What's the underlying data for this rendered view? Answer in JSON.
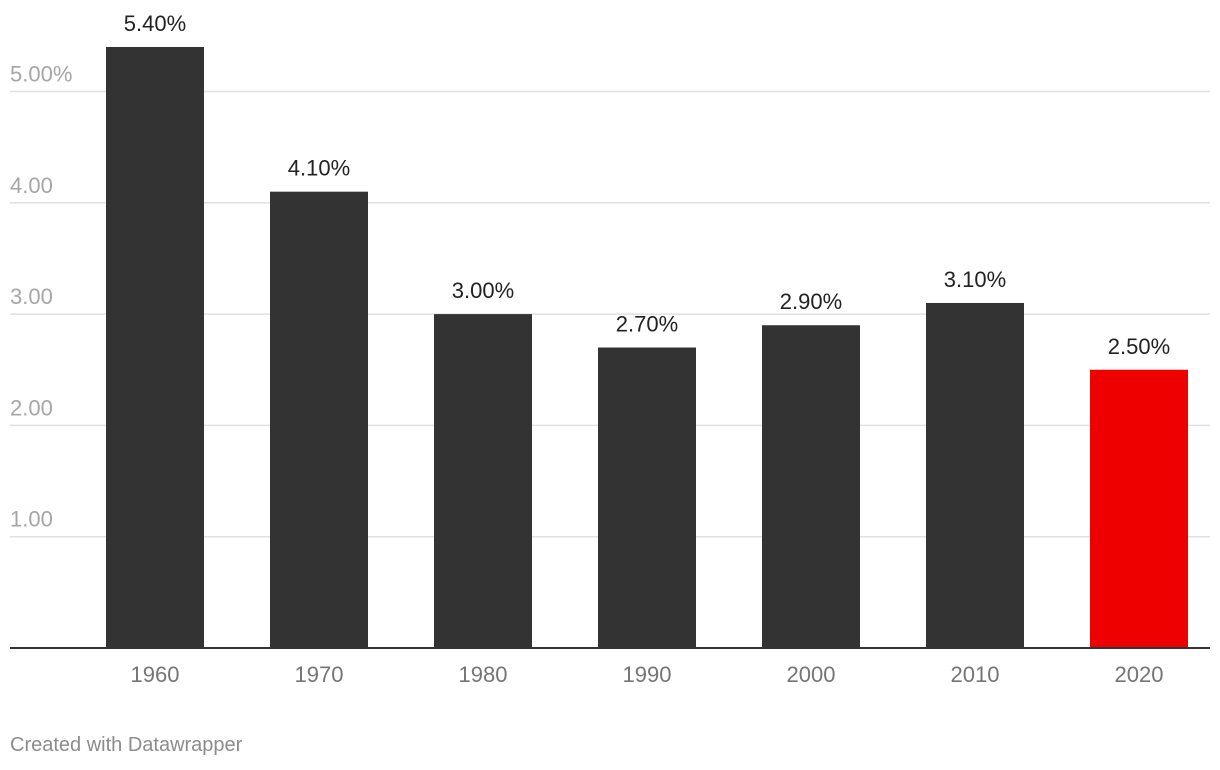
{
  "chart_data": {
    "type": "bar",
    "categories": [
      "1960",
      "1970",
      "1980",
      "1990",
      "2000",
      "2010",
      "2020"
    ],
    "values": [
      5.4,
      4.1,
      3.0,
      2.7,
      2.9,
      3.1,
      2.5
    ],
    "value_labels": [
      "5.40%",
      "4.10%",
      "3.00%",
      "2.70%",
      "2.90%",
      "3.10%",
      "2.50%"
    ],
    "y_ticks": [
      {
        "value": 1,
        "label": "1.00"
      },
      {
        "value": 2,
        "label": "2.00"
      },
      {
        "value": 3,
        "label": "3.00"
      },
      {
        "value": 4,
        "label": "4.00"
      },
      {
        "value": 5,
        "label": "5.00%"
      }
    ],
    "ylim": [
      0,
      5.4
    ],
    "grid": true,
    "title": "",
    "xlabel": "",
    "ylabel": "",
    "colors": {
      "bar": "#333333",
      "highlight": "#ee0000",
      "highlight_category": "2020",
      "grid": "#e0e0e0",
      "axis": "#333333",
      "tick_label": "#a6a6a6",
      "category_label": "#757575",
      "value_label": "#222222"
    }
  },
  "footer": {
    "credit": "Created with Datawrapper"
  }
}
